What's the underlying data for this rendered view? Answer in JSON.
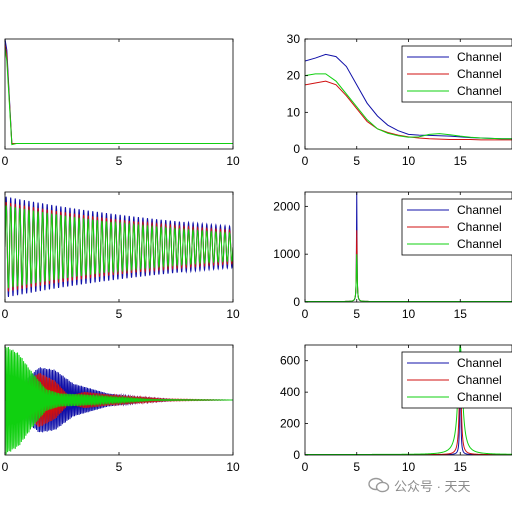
{
  "watermark": {
    "text": "公众号 · 天天"
  },
  "series_colors": {
    "Channel 1": "#1010a8",
    "Channel 2": "#d01010",
    "Channel 3": "#10d010"
  },
  "chart_data": [
    {
      "type": "line",
      "xlim": [
        0,
        10
      ],
      "ylim": [
        0,
        1
      ],
      "xticks": [
        "0",
        "5",
        "10"
      ],
      "yticks": [],
      "grid": false,
      "series": [
        {
          "color": "#1010a8",
          "x": [
            0,
            0.08,
            0.3,
            0.5,
            1,
            5,
            10
          ],
          "y": [
            1.0,
            0.9,
            0.05,
            0.05,
            0.05,
            0.05,
            0.05
          ]
        },
        {
          "color": "#d01010",
          "x": [
            0,
            0.08,
            0.3,
            0.5,
            1,
            5,
            10
          ],
          "y": [
            0.95,
            0.85,
            0.05,
            0.05,
            0.05,
            0.05,
            0.05
          ]
        },
        {
          "color": "#10d010",
          "x": [
            0,
            0.08,
            0.3,
            0.5,
            1,
            5,
            10
          ],
          "y": [
            0.92,
            0.8,
            0.04,
            0.05,
            0.05,
            0.05,
            0.05
          ]
        }
      ]
    },
    {
      "type": "line",
      "xlim": [
        0,
        20
      ],
      "ylim": [
        0,
        30
      ],
      "xticks": [
        "0",
        "5",
        "10",
        "15"
      ],
      "yticks": [
        "0",
        "10",
        "20",
        "30"
      ],
      "grid": false,
      "legend": "top-right",
      "series": [
        {
          "name": "Channel",
          "color": "#1010a8",
          "x": [
            0,
            1,
            2,
            3,
            4,
            5,
            6,
            7,
            8,
            9,
            10,
            11,
            12,
            13,
            14,
            15,
            16,
            17,
            18,
            19,
            20
          ],
          "y": [
            24,
            24.8,
            25.8,
            25.2,
            22.5,
            17.5,
            12.5,
            9,
            6.5,
            5,
            4,
            3.8,
            3.7,
            3.6,
            3.5,
            3.3,
            3.1,
            3.0,
            2.9,
            2.8,
            2.8
          ]
        },
        {
          "name": "Channel",
          "color": "#d01010",
          "x": [
            0,
            1,
            2,
            3,
            4,
            5,
            6,
            7,
            8,
            9,
            10,
            11,
            12,
            13,
            14,
            15,
            16,
            17,
            18,
            19,
            20
          ],
          "y": [
            17.5,
            18,
            18.5,
            17.5,
            14.5,
            11,
            7.5,
            5.5,
            4.5,
            3.8,
            3.3,
            3.0,
            2.8,
            2.7,
            2.6,
            2.6,
            2.6,
            2.5,
            2.5,
            2.5,
            2.5
          ]
        },
        {
          "name": "Channel",
          "color": "#10d010",
          "x": [
            0,
            1,
            2,
            3,
            4,
            5,
            6,
            7,
            8,
            9,
            10,
            11,
            12,
            13,
            14,
            15,
            16,
            17,
            18,
            19,
            20
          ],
          "y": [
            20,
            20.5,
            20.5,
            18.5,
            15,
            11.5,
            8,
            5.5,
            4.3,
            3.6,
            3.2,
            3.3,
            4.0,
            4.2,
            3.9,
            3.5,
            3.2,
            3.0,
            2.9,
            2.8,
            2.8
          ]
        }
      ]
    },
    {
      "type": "line",
      "xlim": [
        0,
        10
      ],
      "ylim": [
        -1,
        1
      ],
      "xticks": [
        "0",
        "5",
        "10"
      ],
      "yticks": [],
      "grid": false,
      "series": [
        {
          "color": "#1010a8",
          "frequency": 5,
          "decay": 0.09,
          "amplitude": 0.92
        },
        {
          "color": "#d01010",
          "frequency": 5,
          "decay": 0.1,
          "amplitude": 0.82
        },
        {
          "color": "#10d010",
          "frequency": 5,
          "decay": 0.11,
          "amplitude": 0.76
        }
      ]
    },
    {
      "type": "line",
      "xlim": [
        0,
        20
      ],
      "ylim": [
        0,
        2300
      ],
      "xticks": [
        "0",
        "5",
        "10",
        "15"
      ],
      "yticks": [
        "0",
        "1000",
        "2000"
      ],
      "grid": false,
      "legend": "top-right",
      "series": [
        {
          "name": "Channel",
          "color": "#1010a8",
          "peak_x": 5,
          "peak_y": 2300,
          "width": 0.06,
          "base": 10
        },
        {
          "name": "Channel",
          "color": "#d01010",
          "peak_x": 5,
          "peak_y": 1500,
          "width": 0.08,
          "base": 10
        },
        {
          "name": "Channel",
          "color": "#10d010",
          "peak_x": 5,
          "peak_y": 1000,
          "width": 0.1,
          "base": 10
        }
      ]
    },
    {
      "type": "line",
      "xlim": [
        0,
        10
      ],
      "ylim": [
        -1,
        1
      ],
      "xticks": [
        "0",
        "5",
        "10"
      ],
      "yticks": [],
      "grid": false,
      "series": [
        {
          "color": "#1010a8",
          "frequency": 15,
          "envelope": [
            [
              0,
              0
            ],
            [
              0.8,
              0.35
            ],
            [
              1.5,
              0.6
            ],
            [
              2.2,
              0.55
            ],
            [
              3,
              0.3
            ],
            [
              4.5,
              0.12
            ],
            [
              6,
              0.05
            ],
            [
              7.5,
              0.01
            ],
            [
              10,
              0
            ]
          ]
        },
        {
          "color": "#d01010",
          "frequency": 15,
          "envelope": [
            [
              0,
              0
            ],
            [
              0.8,
              0.3
            ],
            [
              1.5,
              0.5
            ],
            [
              2.2,
              0.35
            ],
            [
              2.8,
              0.08
            ],
            [
              3.5,
              0.15
            ],
            [
              5,
              0.08
            ],
            [
              7,
              0.02
            ],
            [
              10,
              0
            ]
          ]
        },
        {
          "color": "#10d010",
          "frequency": 15,
          "envelope": [
            [
              0,
              1.0
            ],
            [
              0.6,
              0.85
            ],
            [
              1.2,
              0.5
            ],
            [
              1.8,
              0.2
            ],
            [
              2.4,
              0.12
            ],
            [
              3.5,
              0.1
            ],
            [
              5,
              0.05
            ],
            [
              6.5,
              0.01
            ],
            [
              10,
              0
            ]
          ]
        }
      ]
    },
    {
      "type": "line",
      "xlim": [
        0,
        20
      ],
      "ylim": [
        0,
        700
      ],
      "xticks": [
        "0",
        "5",
        "10",
        "15"
      ],
      "yticks": [
        "0",
        "200",
        "400",
        "600"
      ],
      "grid": false,
      "legend": "top-right",
      "series": [
        {
          "name": "Channel",
          "color": "#1010a8",
          "peak_x": 15,
          "peak_y": 700,
          "width": 0.1,
          "base": 2
        },
        {
          "name": "Channel",
          "color": "#d01010",
          "peak_x": 15,
          "peak_y": 600,
          "width": 0.22,
          "base": 2
        },
        {
          "name": "Channel",
          "color": "#10d010",
          "peak_x": 15,
          "peak_y": 700,
          "width": 0.5,
          "base": 3
        }
      ]
    }
  ]
}
